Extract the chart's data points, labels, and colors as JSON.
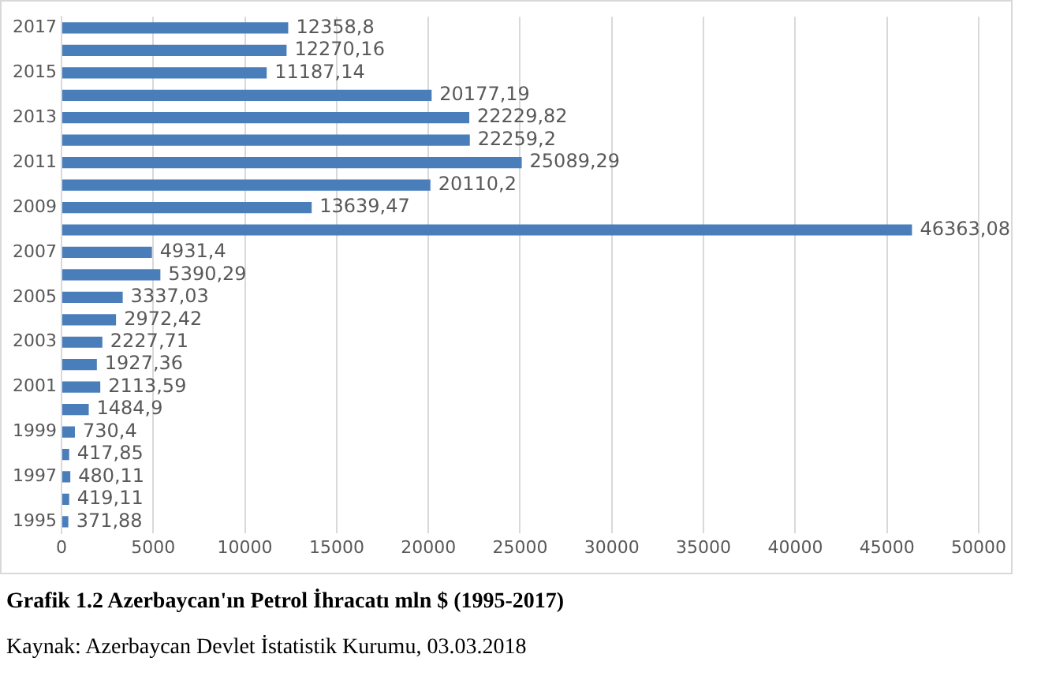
{
  "chart_data": {
    "type": "bar",
    "orientation": "horizontal",
    "title": "Grafik 1.2 Azerbaycan'ın Petrol İhracatı mln $ (1995-2017)",
    "annotations": [
      "Kaynak: Azerbaycan Devlet İstatistik Kurumu, 03.03.2018"
    ],
    "categories": [
      "2017",
      null,
      "2015",
      null,
      "2013",
      null,
      "2011",
      null,
      "2009",
      null,
      "2007",
      null,
      "2005",
      null,
      "2003",
      null,
      "2001",
      null,
      "1999",
      null,
      "1997",
      null,
      "1995"
    ],
    "values": [
      12358.8,
      12270.16,
      11187.14,
      20177.19,
      22229.82,
      22259.2,
      25089.29,
      20110.2,
      13639.47,
      46363.08,
      4931.4,
      5390.29,
      3337.03,
      2972.42,
      2227.71,
      1927.36,
      2113.59,
      1484.9,
      730.4,
      417.85,
      480.11,
      419.11,
      371.88
    ],
    "value_labels": [
      "12358,8",
      "12270,16",
      "11187,14",
      "20177,19",
      "22229,82",
      "22259,2",
      "25089,29",
      "20110,2",
      "13639,47",
      "46363,08",
      "4931,4",
      "5390,29",
      "3337,03",
      "2972,42",
      "2227,71",
      "1927,36",
      "2113,59",
      "1484,9",
      "730,4",
      "417,85",
      "480,11",
      "419,11",
      "371,88"
    ],
    "color": "#4a7ebb",
    "xlim": [
      0,
      50000
    ],
    "xticks": [
      0,
      5000,
      10000,
      15000,
      20000,
      25000,
      30000,
      35000,
      40000,
      45000,
      50000
    ],
    "grid": "x"
  }
}
